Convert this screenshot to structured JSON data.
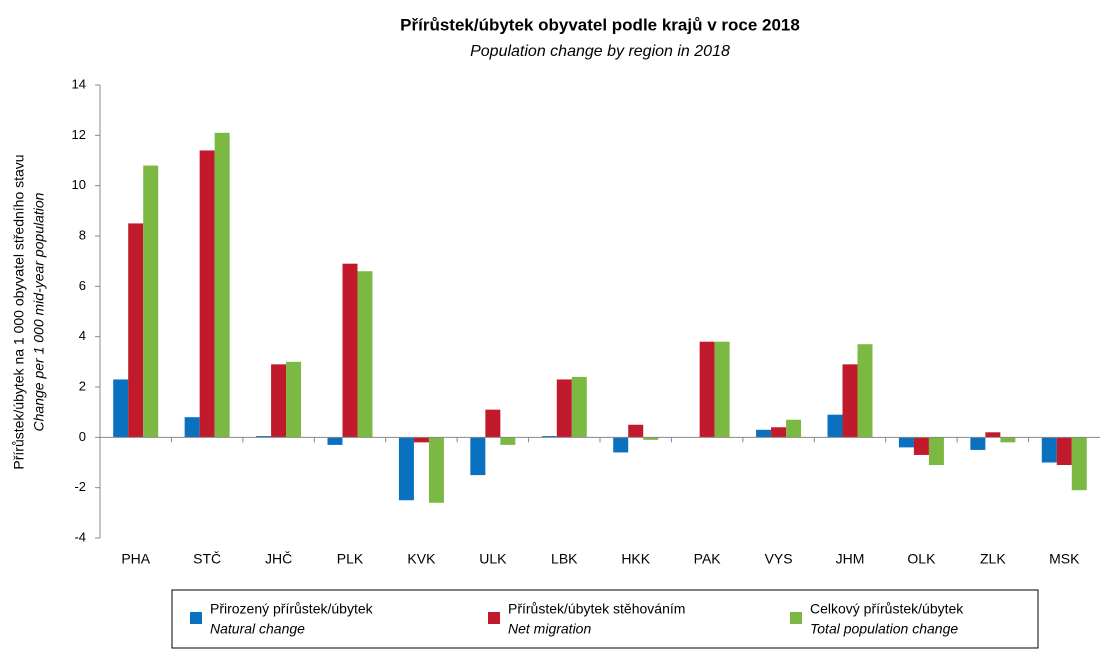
{
  "chart_data": {
    "type": "bar",
    "title": "Přírůstek/úbytek obyvatel podle krajů v roce 2018",
    "subtitle": "Population change by region in 2018",
    "y_label": "Přírůstek/úbytek na 1 000 obyvatel středního stavu",
    "y_label_en": "Change per 1 000 mid-year population",
    "categories": [
      "PHA",
      "STČ",
      "JHČ",
      "PLK",
      "KVK",
      "ULK",
      "LBK",
      "HKK",
      "PAK",
      "VYS",
      "JHM",
      "OLK",
      "ZLK",
      "MSK"
    ],
    "series": [
      {
        "name": "Přirozený přírůstek/úbytek",
        "name_en": "Natural change",
        "color": "#0a70c0",
        "values": [
          2.3,
          0.8,
          0.05,
          -0.3,
          -2.5,
          -1.5,
          0.05,
          -0.6,
          0.0,
          0.3,
          0.9,
          -0.4,
          -0.5,
          -1.0
        ]
      },
      {
        "name": "Přírůstek/úbytek stěhováním",
        "name_en": "Net migration",
        "color": "#c01a2c",
        "values": [
          8.5,
          11.4,
          2.9,
          6.9,
          -0.2,
          1.1,
          2.3,
          0.5,
          3.8,
          0.4,
          2.9,
          -0.7,
          0.2,
          -1.1
        ]
      },
      {
        "name": "Celkový přírůstek/úbytek",
        "name_en": "Total population change",
        "color": "#7cb942",
        "values": [
          10.8,
          12.1,
          3.0,
          6.6,
          -2.6,
          -0.3,
          2.4,
          -0.1,
          3.8,
          0.7,
          3.7,
          -1.1,
          -0.2,
          -2.1
        ]
      }
    ],
    "ylim": [
      -4,
      14
    ],
    "yticks": [
      -4,
      -2,
      0,
      2,
      4,
      6,
      8,
      10,
      12,
      14
    ],
    "grid": false
  }
}
